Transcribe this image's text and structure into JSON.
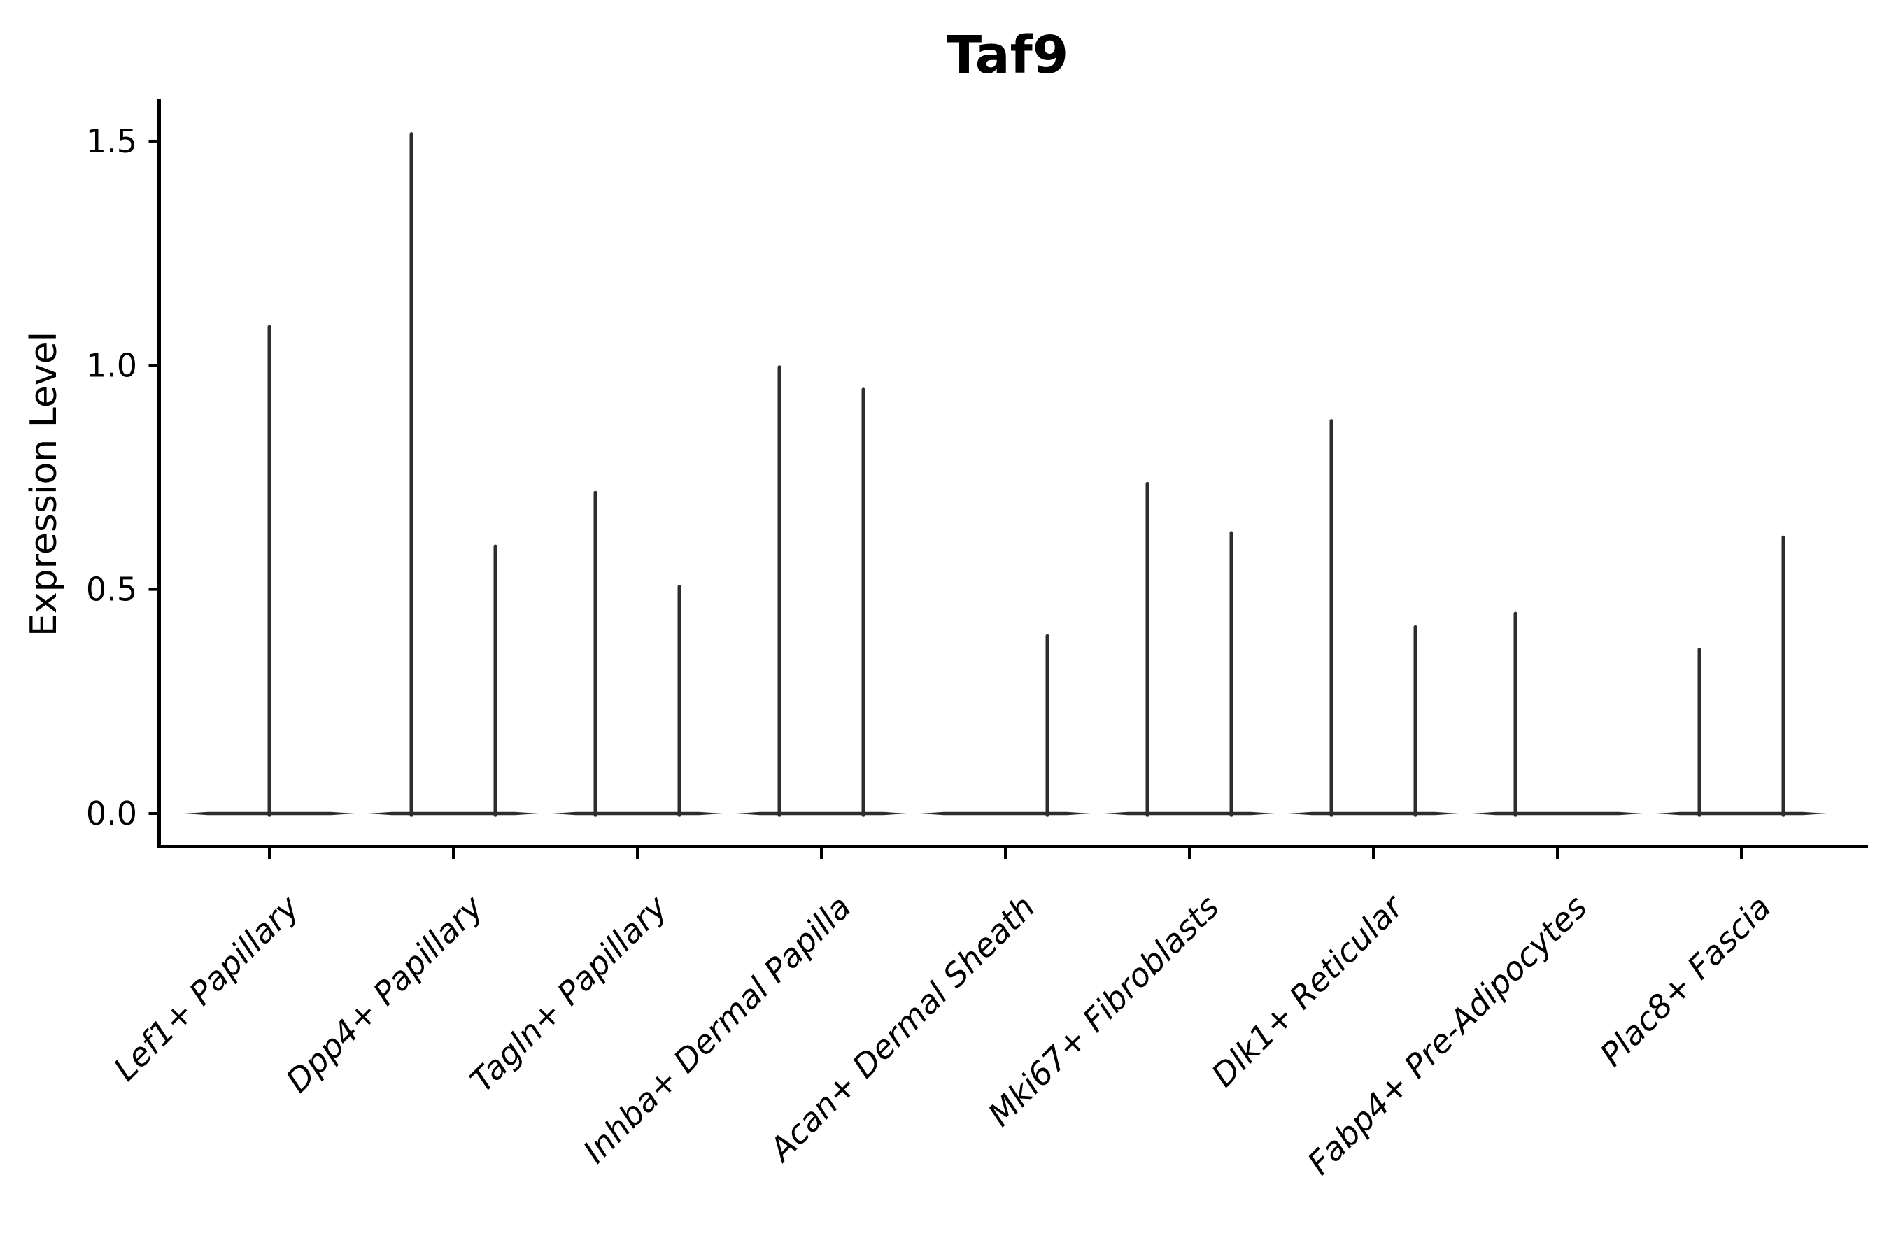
{
  "chart_data": {
    "type": "violin",
    "title": "Taf9",
    "xlabel": "",
    "ylabel": "Expression Level",
    "ylim": [
      -0.07,
      1.59
    ],
    "yticks": [
      0.0,
      0.5,
      1.0,
      1.5
    ],
    "ytick_labels": [
      "0.0",
      "0.5",
      "1.0",
      "1.5"
    ],
    "grid": false,
    "legend": "none",
    "baseline_value": 0.0,
    "categories": [
      {
        "label": "Lef1+ Papillary",
        "spikes": [
          {
            "side": "center",
            "max": 1.09
          }
        ]
      },
      {
        "label": "Dpp4+ Papillary",
        "spikes": [
          {
            "side": "left",
            "max": 1.52
          },
          {
            "side": "right",
            "max": 0.6
          }
        ]
      },
      {
        "label": "Tagln+ Papillary",
        "spikes": [
          {
            "side": "left",
            "max": 0.72
          },
          {
            "side": "right",
            "max": 0.51
          }
        ]
      },
      {
        "label": "Inhba+ Dermal Papilla",
        "spikes": [
          {
            "side": "left",
            "max": 1.0
          },
          {
            "side": "right",
            "max": 0.95
          }
        ]
      },
      {
        "label": "Acan+ Dermal Sheath",
        "spikes": [
          {
            "side": "right",
            "max": 0.4
          }
        ]
      },
      {
        "label": "Mki67+ Fibroblasts",
        "spikes": [
          {
            "side": "left",
            "max": 0.74
          },
          {
            "side": "right",
            "max": 0.63
          }
        ]
      },
      {
        "label": "Dlk1+ Reticular",
        "spikes": [
          {
            "side": "left",
            "max": 0.88
          },
          {
            "side": "right",
            "max": 0.42
          }
        ]
      },
      {
        "label": "Fabp4+ Pre-Adipocytes",
        "spikes": [
          {
            "side": "left",
            "max": 0.45
          }
        ]
      },
      {
        "label": "Plac8+ Fascia",
        "spikes": [
          {
            "side": "left",
            "max": 0.37
          },
          {
            "side": "right",
            "max": 0.62
          }
        ]
      }
    ]
  },
  "style": {
    "background": "#ffffff",
    "axis_color": "#000000",
    "text_color": "#000000",
    "violin_color": "#2d2d2d"
  }
}
